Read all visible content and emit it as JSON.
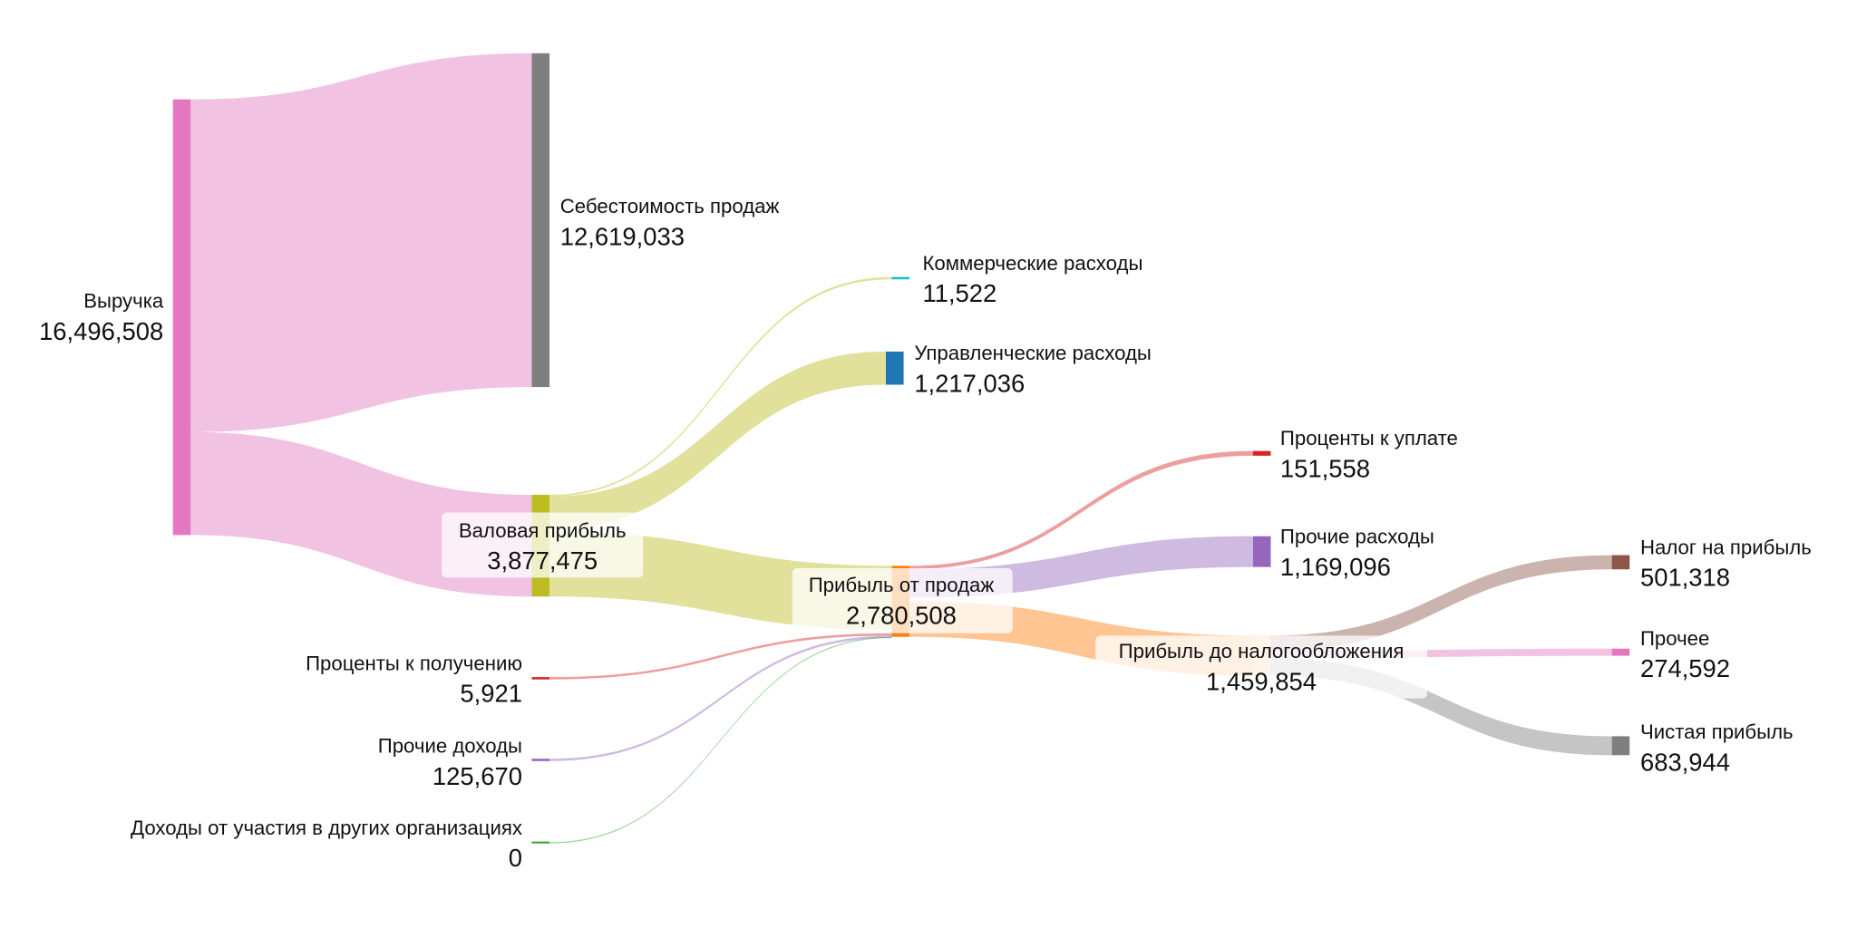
{
  "chart_data": {
    "type": "sankey",
    "title": "",
    "nodes": [
      {
        "id": "revenue",
        "label": "Выручка",
        "value": "16,496,508",
        "color": "#e377c2"
      },
      {
        "id": "cogs",
        "label": "Себестоимость продаж",
        "value": "12,619,033",
        "color": "#7f7f7f"
      },
      {
        "id": "gross",
        "label": "Валовая прибыль",
        "value": "3,877,475",
        "color": "#bcbd22"
      },
      {
        "id": "commercial",
        "label": "Коммерческие расходы",
        "value": "11,522",
        "color": "#17becf"
      },
      {
        "id": "admin",
        "label": "Управленческие расходы",
        "value": "1,217,036",
        "color": "#1f77b4"
      },
      {
        "id": "sales_profit",
        "label": "Прибыль от продаж",
        "value": "2,780,508",
        "color": "#ff7f0e"
      },
      {
        "id": "interest_paid",
        "label": "Проценты к уплате",
        "value": "151,558",
        "color": "#d62728"
      },
      {
        "id": "other_exp",
        "label": "Прочие расходы",
        "value": "1,169,096",
        "color": "#9467bd"
      },
      {
        "id": "pretax",
        "label": "Прибыль до налогообложения",
        "value": "1,459,854",
        "color": "#ff7f0e"
      },
      {
        "id": "interest_recv",
        "label": "Проценты к получению",
        "value": "5,921",
        "color": "#d62728"
      },
      {
        "id": "other_inc",
        "label": "Прочие доходы",
        "value": "125,670",
        "color": "#9467bd"
      },
      {
        "id": "dividends",
        "label": "Доходы от участия в других организациях",
        "value": "0",
        "color": "#2ca02c"
      },
      {
        "id": "tax",
        "label": "Налог на прибыль",
        "value": "501,318",
        "color": "#8c564b"
      },
      {
        "id": "other",
        "label": "Прочее",
        "value": "274,592",
        "color": "#e377c2"
      },
      {
        "id": "net",
        "label": "Чистая прибыль",
        "value": "683,944",
        "color": "#7f7f7f"
      }
    ],
    "links": [
      {
        "source": "revenue",
        "target": "cogs",
        "value": 12619033,
        "color": "#e377c2"
      },
      {
        "source": "revenue",
        "target": "gross",
        "value": 3877475,
        "color": "#e377c2"
      },
      {
        "source": "gross",
        "target": "commercial",
        "value": 11522,
        "color": "#bcbd22"
      },
      {
        "source": "gross",
        "target": "admin",
        "value": 1217036,
        "color": "#bcbd22"
      },
      {
        "source": "gross",
        "target": "sales_profit",
        "value": 2648917,
        "color": "#bcbd22"
      },
      {
        "source": "sales_profit",
        "target": "interest_paid",
        "value": 151558,
        "color": "#d62728"
      },
      {
        "source": "sales_profit",
        "target": "other_exp",
        "value": 1169096,
        "color": "#9467bd"
      },
      {
        "source": "sales_profit",
        "target": "pretax",
        "value": 1459854,
        "color": "#ff7f0e"
      },
      {
        "source": "interest_recv",
        "target": "sales_profit",
        "value": 5921,
        "color": "#d62728"
      },
      {
        "source": "other_inc",
        "target": "sales_profit",
        "value": 125670,
        "color": "#9467bd"
      },
      {
        "source": "dividends",
        "target": "sales_profit",
        "value": 0,
        "color": "#2ca02c"
      },
      {
        "source": "pretax",
        "target": "tax",
        "value": 501318,
        "color": "#8c564b"
      },
      {
        "source": "pretax",
        "target": "other",
        "value": 274592,
        "color": "#e377c2"
      },
      {
        "source": "pretax",
        "target": "net",
        "value": 683944,
        "color": "#7f7f7f"
      }
    ]
  }
}
